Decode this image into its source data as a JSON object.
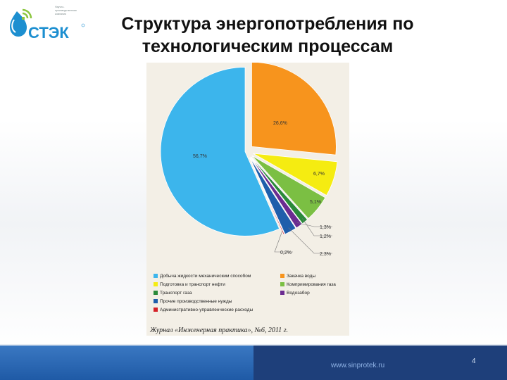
{
  "slide": {
    "title_line1": "Структура энергопотребления по",
    "title_line2": "технологическим процессам",
    "footer_url": "www.sinprotek.ru",
    "page_number": "4"
  },
  "logo": {
    "text": "СТЭК",
    "tiny_lines": [
      "Научно-",
      "производственная",
      "компания"
    ]
  },
  "colors": {
    "blue": "#3cb5ec",
    "orange": "#f7941d",
    "yellow": "#f5ec11",
    "green": "#7bbf43",
    "dark_green": "#2a8a3a",
    "navy": "#1f5eab",
    "purple": "#6b2c91",
    "red": "#d42027"
  },
  "chart_data": {
    "type": "pie",
    "slices": [
      {
        "label": "Закачка воды",
        "value": 26.6,
        "label_text": "26,6%",
        "color": "#f7941d"
      },
      {
        "label": "Подготовка и транспорт нефти",
        "value": 6.7,
        "label_text": "6,7%",
        "color": "#f5ec11"
      },
      {
        "label": "Компримирования газа",
        "value": 5.1,
        "label_text": "5,1%",
        "color": "#7bbf43"
      },
      {
        "label": "Транспорт газа",
        "value": 1.2,
        "label_text": "1,2%",
        "color": "#2a8a3a"
      },
      {
        "label": "Водозабор",
        "value": 1.3,
        "label_text": "1,3%",
        "color": "#6b2c91"
      },
      {
        "label": "Прочие производственные нужды",
        "value": 2.3,
        "label_text": "2,3%",
        "color": "#1f5eab"
      },
      {
        "label": "Административно-управленческие расходы",
        "value": 0.2,
        "label_text": "0,2%",
        "color": "#d42027"
      },
      {
        "label": "Добыча жидкости механическим способом",
        "value": 56.7,
        "label_text": "56,7%",
        "color": "#3cb5ec"
      }
    ],
    "legend": [
      {
        "label": "Добыча жидкости механическим способом",
        "color": "#3cb5ec"
      },
      {
        "label": "Закачка воды",
        "color": "#f7941d"
      },
      {
        "label": "Подготовка и транспорт нефти",
        "color": "#f5ec11"
      },
      {
        "label": "Компримирования газа",
        "color": "#7bbf43"
      },
      {
        "label": "Транспорт газа",
        "color": "#2a8a3a"
      },
      {
        "label": "Водозабор",
        "color": "#6b2c91"
      },
      {
        "label": "Прочие производственные нужды",
        "color": "#1f5eab"
      },
      {
        "label": "Административно-управленческие расходы",
        "color": "#d42027"
      }
    ],
    "source": "Журнал «Инженерная практика», №6, 2011 г."
  }
}
